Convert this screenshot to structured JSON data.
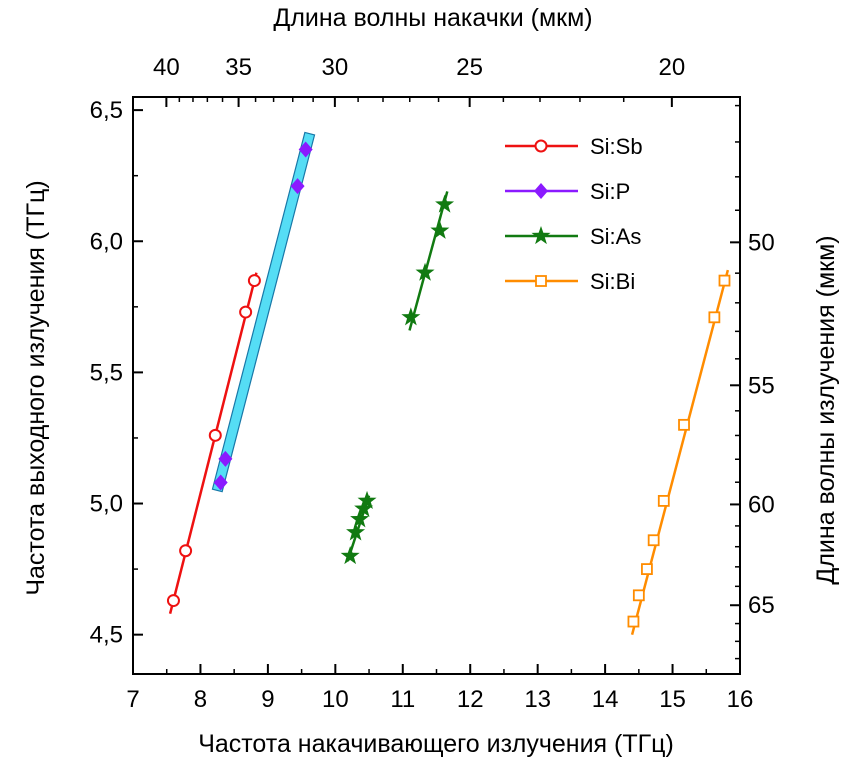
{
  "chart_data": {
    "type": "scatter",
    "xlabel": "Частота накачивающего излучения (ТГц)",
    "ylabel": "Частота выходного излучения (ТГц)",
    "top_xlabel": "Длина волны накачки (мкм)",
    "right_ylabel": "Длина волны излучения (мкм)",
    "xlim": [
      7,
      16
    ],
    "ylim": [
      4.35,
      6.55
    ],
    "x_ticks": [
      7,
      8,
      9,
      10,
      11,
      12,
      13,
      14,
      15,
      16
    ],
    "x_tick_labels": [
      "7",
      "8",
      "9",
      "10",
      "11",
      "12",
      "13",
      "14",
      "15",
      "16"
    ],
    "y_ticks": [
      4.5,
      5.0,
      5.5,
      6.0,
      6.5
    ],
    "y_tick_labels": [
      "4,5",
      "5,0",
      "5,5",
      "6,0",
      "6,5"
    ],
    "top_ticks": [
      40,
      35,
      30,
      25,
      20
    ],
    "top_tick_labels": [
      "40",
      "35",
      "30",
      "25",
      "20"
    ],
    "right_ticks": [
      50,
      55,
      60,
      65
    ],
    "right_tick_labels": [
      "50",
      "55",
      "60",
      "65"
    ],
    "grid": false,
    "legend_position": "top-right",
    "series": [
      {
        "name": "Si:Sb",
        "color": "#ee1111",
        "marker": "circle-open",
        "x": [
          7.6,
          7.78,
          8.22,
          8.67,
          8.8
        ],
        "y": [
          4.63,
          4.82,
          5.26,
          5.73,
          5.85
        ],
        "fit": [
          [
            7.55,
            4.58
          ],
          [
            8.83,
            5.88
          ]
        ]
      },
      {
        "name": "Si:P",
        "color": "#8b1aff",
        "marker": "diamond-filled",
        "x": [
          8.3,
          8.37,
          9.44,
          9.56
        ],
        "y": [
          5.08,
          5.17,
          6.21,
          6.35
        ],
        "band": [
          [
            8.25,
            5.05
          ],
          [
            9.62,
            6.41
          ]
        ]
      },
      {
        "name": "Si:As",
        "color": "#117a11",
        "marker": "star-filled",
        "x": [
          10.22,
          10.3,
          10.36,
          10.42,
          10.47,
          11.12,
          11.33,
          11.55,
          11.62
        ],
        "y": [
          4.8,
          4.89,
          4.94,
          4.98,
          5.01,
          5.71,
          5.88,
          6.04,
          6.14
        ],
        "fits": [
          [
            [
              10.18,
              4.78
            ],
            [
              10.5,
              5.03
            ]
          ],
          [
            [
              11.1,
              5.66
            ],
            [
              11.66,
              6.19
            ]
          ]
        ]
      },
      {
        "name": "Si:Bi",
        "color": "#ff8c00",
        "marker": "square-open",
        "x": [
          14.42,
          14.5,
          14.62,
          14.72,
          14.87,
          15.17,
          15.62,
          15.77
        ],
        "y": [
          4.55,
          4.65,
          4.75,
          4.86,
          5.01,
          5.3,
          5.71,
          5.85
        ],
        "fit": [
          [
            14.4,
            4.5
          ],
          [
            15.82,
            5.89
          ]
        ]
      }
    ]
  }
}
